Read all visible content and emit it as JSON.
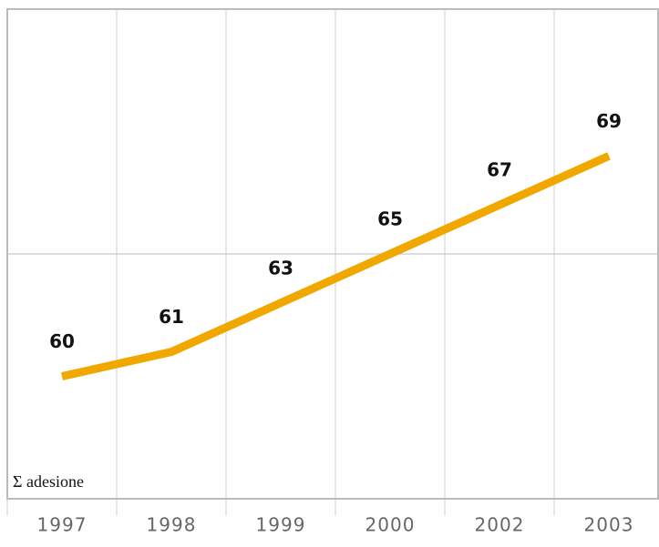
{
  "chart_data": {
    "type": "line",
    "categories": [
      "1997",
      "1998",
      "1999",
      "2000",
      "2002",
      "2003"
    ],
    "values": [
      60,
      61,
      63,
      65,
      67,
      69
    ],
    "color": "#f0a800",
    "ylabel": "Σ adesione",
    "ylim": [
      55,
      75
    ],
    "yticks": [
      55,
      65,
      75
    ],
    "grid": true
  }
}
